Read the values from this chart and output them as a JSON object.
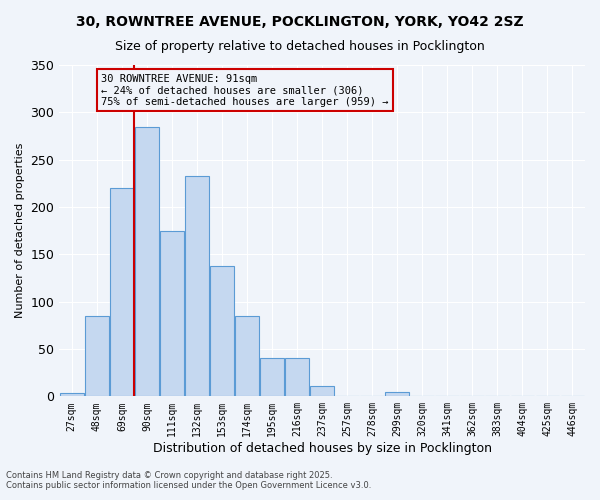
{
  "title1": "30, ROWNTREE AVENUE, POCKLINGTON, YORK, YO42 2SZ",
  "title2": "Size of property relative to detached houses in Pocklington",
  "xlabel": "Distribution of detached houses by size in Pocklington",
  "ylabel": "Number of detached properties",
  "bins": [
    "27sqm",
    "48sqm",
    "69sqm",
    "90sqm",
    "111sqm",
    "132sqm",
    "153sqm",
    "174sqm",
    "195sqm",
    "216sqm",
    "237sqm",
    "257sqm",
    "278sqm",
    "299sqm",
    "320sqm",
    "341sqm",
    "362sqm",
    "383sqm",
    "404sqm",
    "425sqm",
    "446sqm"
  ],
  "values": [
    3,
    85,
    220,
    285,
    175,
    233,
    138,
    85,
    40,
    40,
    11,
    0,
    0,
    5,
    0,
    0,
    0,
    0,
    0,
    0,
    0
  ],
  "bar_color": "#c5d8f0",
  "bar_edge_color": "#5b9bd5",
  "vline_x": 3,
  "vline_color": "#cc0000",
  "annotation_lines": [
    "30 ROWNTREE AVENUE: 91sqm",
    "← 24% of detached houses are smaller (306)",
    "75% of semi-detached houses are larger (959) →"
  ],
  "annotation_box_color": "#cc0000",
  "ylim": [
    0,
    350
  ],
  "yticks": [
    0,
    50,
    100,
    150,
    200,
    250,
    300,
    350
  ],
  "footer1": "Contains HM Land Registry data © Crown copyright and database right 2025.",
  "footer2": "Contains public sector information licensed under the Open Government Licence v3.0.",
  "bg_color": "#f0f4fa"
}
